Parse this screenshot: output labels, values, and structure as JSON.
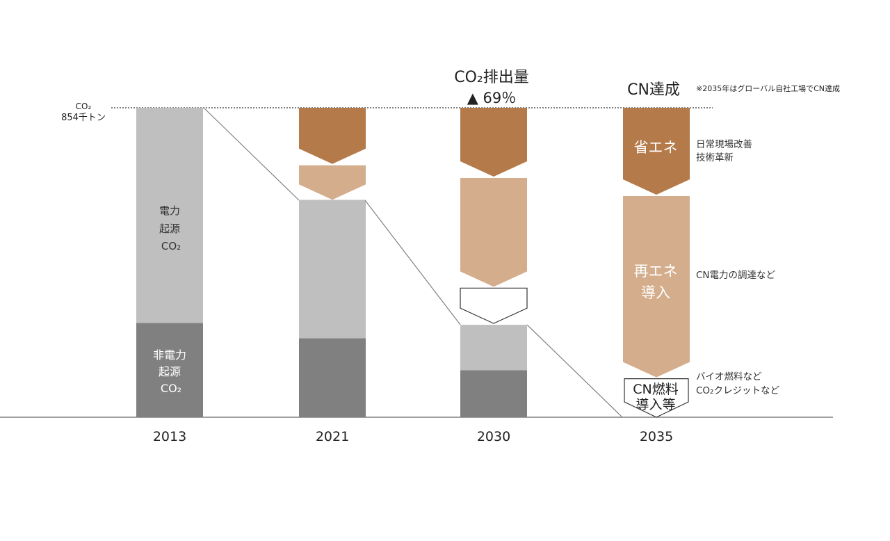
{
  "colors": {
    "energy_saving": "#b57a4a",
    "renewable": "#d4ad8c",
    "electric": "#bfbfbf",
    "non_electric": "#808080",
    "line": "#808080"
  },
  "labels": {
    "baseline_co2": "CO₂",
    "baseline_value": "854千トン",
    "reduction_title": "CO₂排出量",
    "reduction_value": "▲ 69％",
    "cn_title": "CN達成",
    "cn_note": "※2035年はグローバル自社工場でCN達成",
    "electric_1": "電力",
    "electric_2": "起源",
    "electric_3": "CO₂",
    "nonelectric_1": "非電力",
    "nonelectric_2": "起源",
    "nonelectric_3": "CO₂",
    "energy_saving": "省エネ",
    "renewable_1": "再エネ",
    "renewable_2": "導入",
    "cn_fuel_1": "CN燃料",
    "cn_fuel_2": "導入等",
    "note_saving_1": "日常現場改善",
    "note_saving_2": "技術革新",
    "note_renewable": "CN電力の調達など",
    "note_fuel_1": "バイオ燃料など",
    "note_fuel_2": "CO₂クレジットなど"
  },
  "chart_data": {
    "type": "bar",
    "categories": [
      "2013",
      "2021",
      "2030",
      "2035"
    ],
    "baseline": 854,
    "ylim": [
      0,
      854
    ],
    "series": [
      {
        "key": "non_electric",
        "values": [
          260,
          218,
          130,
          0
        ]
      },
      {
        "key": "electric",
        "values": [
          594,
          382,
          125,
          0
        ]
      },
      {
        "key": "renewable",
        "values": [
          0,
          95,
          300,
          500
        ]
      },
      {
        "key": "energy_saving",
        "values": [
          0,
          155,
          190,
          240
        ]
      },
      {
        "key": "cn_fuel",
        "values": [
          0,
          0,
          105,
          110
        ]
      }
    ]
  }
}
